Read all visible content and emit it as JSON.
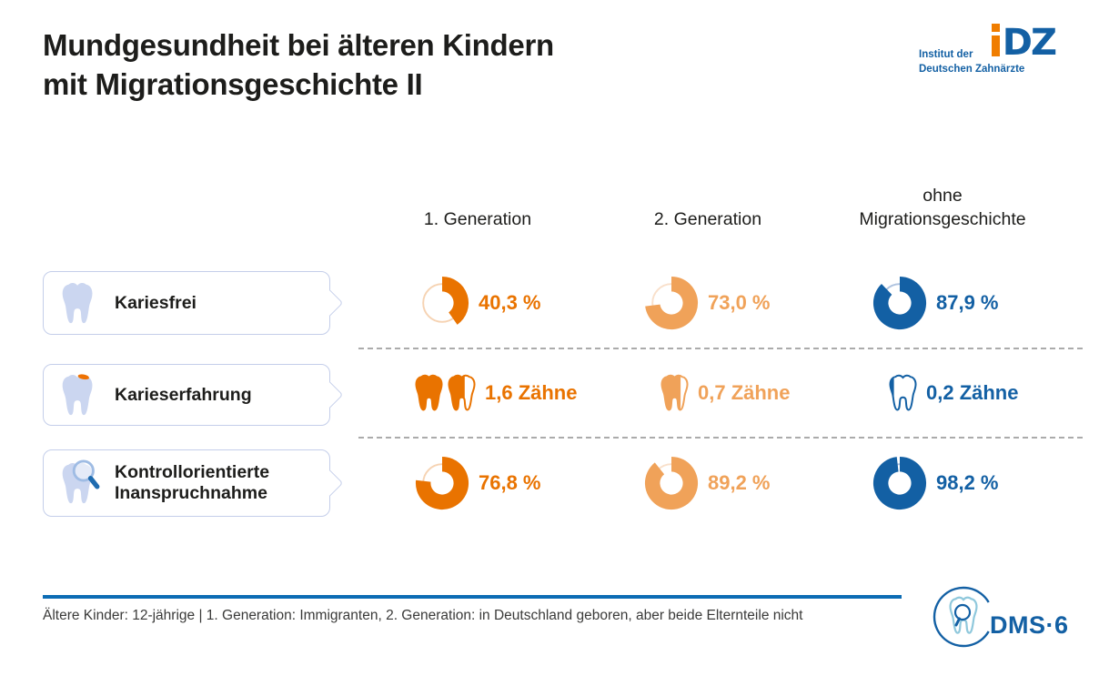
{
  "title": {
    "line1": "Mundgesundheit bei älteren Kindern",
    "line2": "mit Migrationsgeschichte II"
  },
  "idz_logo": {
    "line1": "Institut der",
    "line2": "Deutschen Zahnärzte",
    "mark_dz": "DZ",
    "orange": "#F07D00",
    "blue": "#1360A4"
  },
  "columns": [
    {
      "id": "gen1",
      "label": "1. Generation",
      "color": "#E97300",
      "muted_ring": "#F6D3B3"
    },
    {
      "id": "gen2",
      "label": "2. Generation",
      "color": "#F0A259",
      "muted_ring": "#F9E0CB"
    },
    {
      "id": "ohne",
      "label": "ohne Migrationsgeschichte",
      "color": "#1360A4",
      "muted_ring": "#AFC3DF"
    }
  ],
  "rows": [
    {
      "id": "kariesfrei",
      "label": "Kariesfrei",
      "icon": "tooth-icon",
      "type": "donut",
      "cells": [
        {
          "value": 40.3,
          "display": "40,3 %"
        },
        {
          "value": 73.0,
          "display": "73,0 %"
        },
        {
          "value": 87.9,
          "display": "87,9 %"
        }
      ]
    },
    {
      "id": "karieserfahrung",
      "label": "Karieserfahrung",
      "icon": "tooth-caries-icon",
      "type": "teeth",
      "cells": [
        {
          "value": 1.6,
          "display": "1,6 Zähne"
        },
        {
          "value": 0.7,
          "display": "0,7 Zähne"
        },
        {
          "value": 0.2,
          "display": "0,2 Zähne"
        }
      ]
    },
    {
      "id": "inanspruchnahme",
      "label": "Kontrollorientierte Inanspruchnahme",
      "icon": "tooth-magnifier-icon",
      "type": "donut",
      "cells": [
        {
          "value": 76.8,
          "display": "76,8 %"
        },
        {
          "value": 89.2,
          "display": "89,2 %"
        },
        {
          "value": 98.2,
          "display": "98,2 %"
        }
      ]
    }
  ],
  "footer": {
    "note": "Ältere Kinder: 12-jährige | 1. Generation: Immigranten, 2. Generation: in Deutschland geboren, aber beide Elternteile nicht",
    "dms_label": "DMS·6",
    "rule_color": "#0C6CB4"
  },
  "chart_data": {
    "type": "donut",
    "title": "Mundgesundheit bei älteren Kindern mit Migrationsgeschichte II",
    "categories": [
      "1. Generation",
      "2. Generation",
      "ohne Migrationsgeschichte"
    ],
    "series": [
      {
        "name": "Kariesfrei",
        "unit": "%",
        "values": [
          40.3,
          73.0,
          87.9
        ]
      },
      {
        "name": "Karieserfahrung",
        "unit": "Zähne",
        "values": [
          1.6,
          0.7,
          0.2
        ]
      },
      {
        "name": "Kontrollorientierte Inanspruchnahme",
        "unit": "%",
        "values": [
          76.8,
          89.2,
          98.2
        ]
      }
    ],
    "legend_position": "none",
    "grid": false,
    "colors": [
      "#E97300",
      "#F0A259",
      "#1360A4"
    ]
  }
}
